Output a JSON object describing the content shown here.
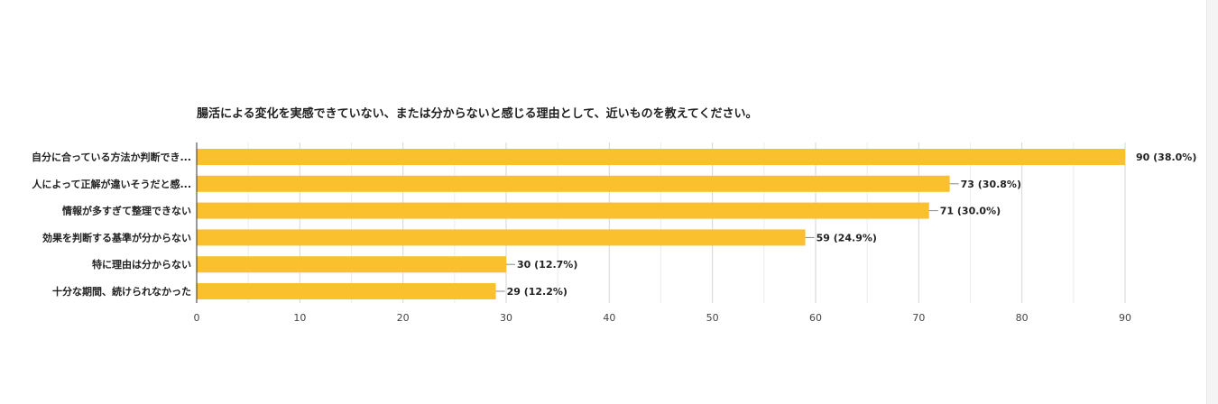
{
  "chart_data": {
    "type": "bar",
    "orientation": "horizontal",
    "title": "腸活による変化を実感できていない、または分からないと感じる理由として、近いものを教えてください。",
    "categories": [
      "自分に合っている方法か判断でき...",
      "人によって正解が違いそうだと感...",
      "情報が多すぎて整理できない",
      "効果を判断する基準が分からない",
      "特に理由は分からない",
      "十分な期間、続けられなかった"
    ],
    "values": [
      90,
      73,
      71,
      59,
      30,
      29
    ],
    "value_labels": [
      "90 (38.0%)",
      "73 (30.8%)",
      "71 (30.0%)",
      "59 (24.9%)",
      "30 (12.7%)",
      "29 (12.2%)"
    ],
    "xlim": [
      0,
      90
    ],
    "x_ticks": [
      0,
      10,
      20,
      30,
      40,
      50,
      60,
      70,
      80,
      90
    ],
    "grid": true,
    "legend": "none",
    "colors": {
      "bar": "#FBC02D",
      "grid": "#e0e0e0",
      "axis": "#333333"
    }
  }
}
